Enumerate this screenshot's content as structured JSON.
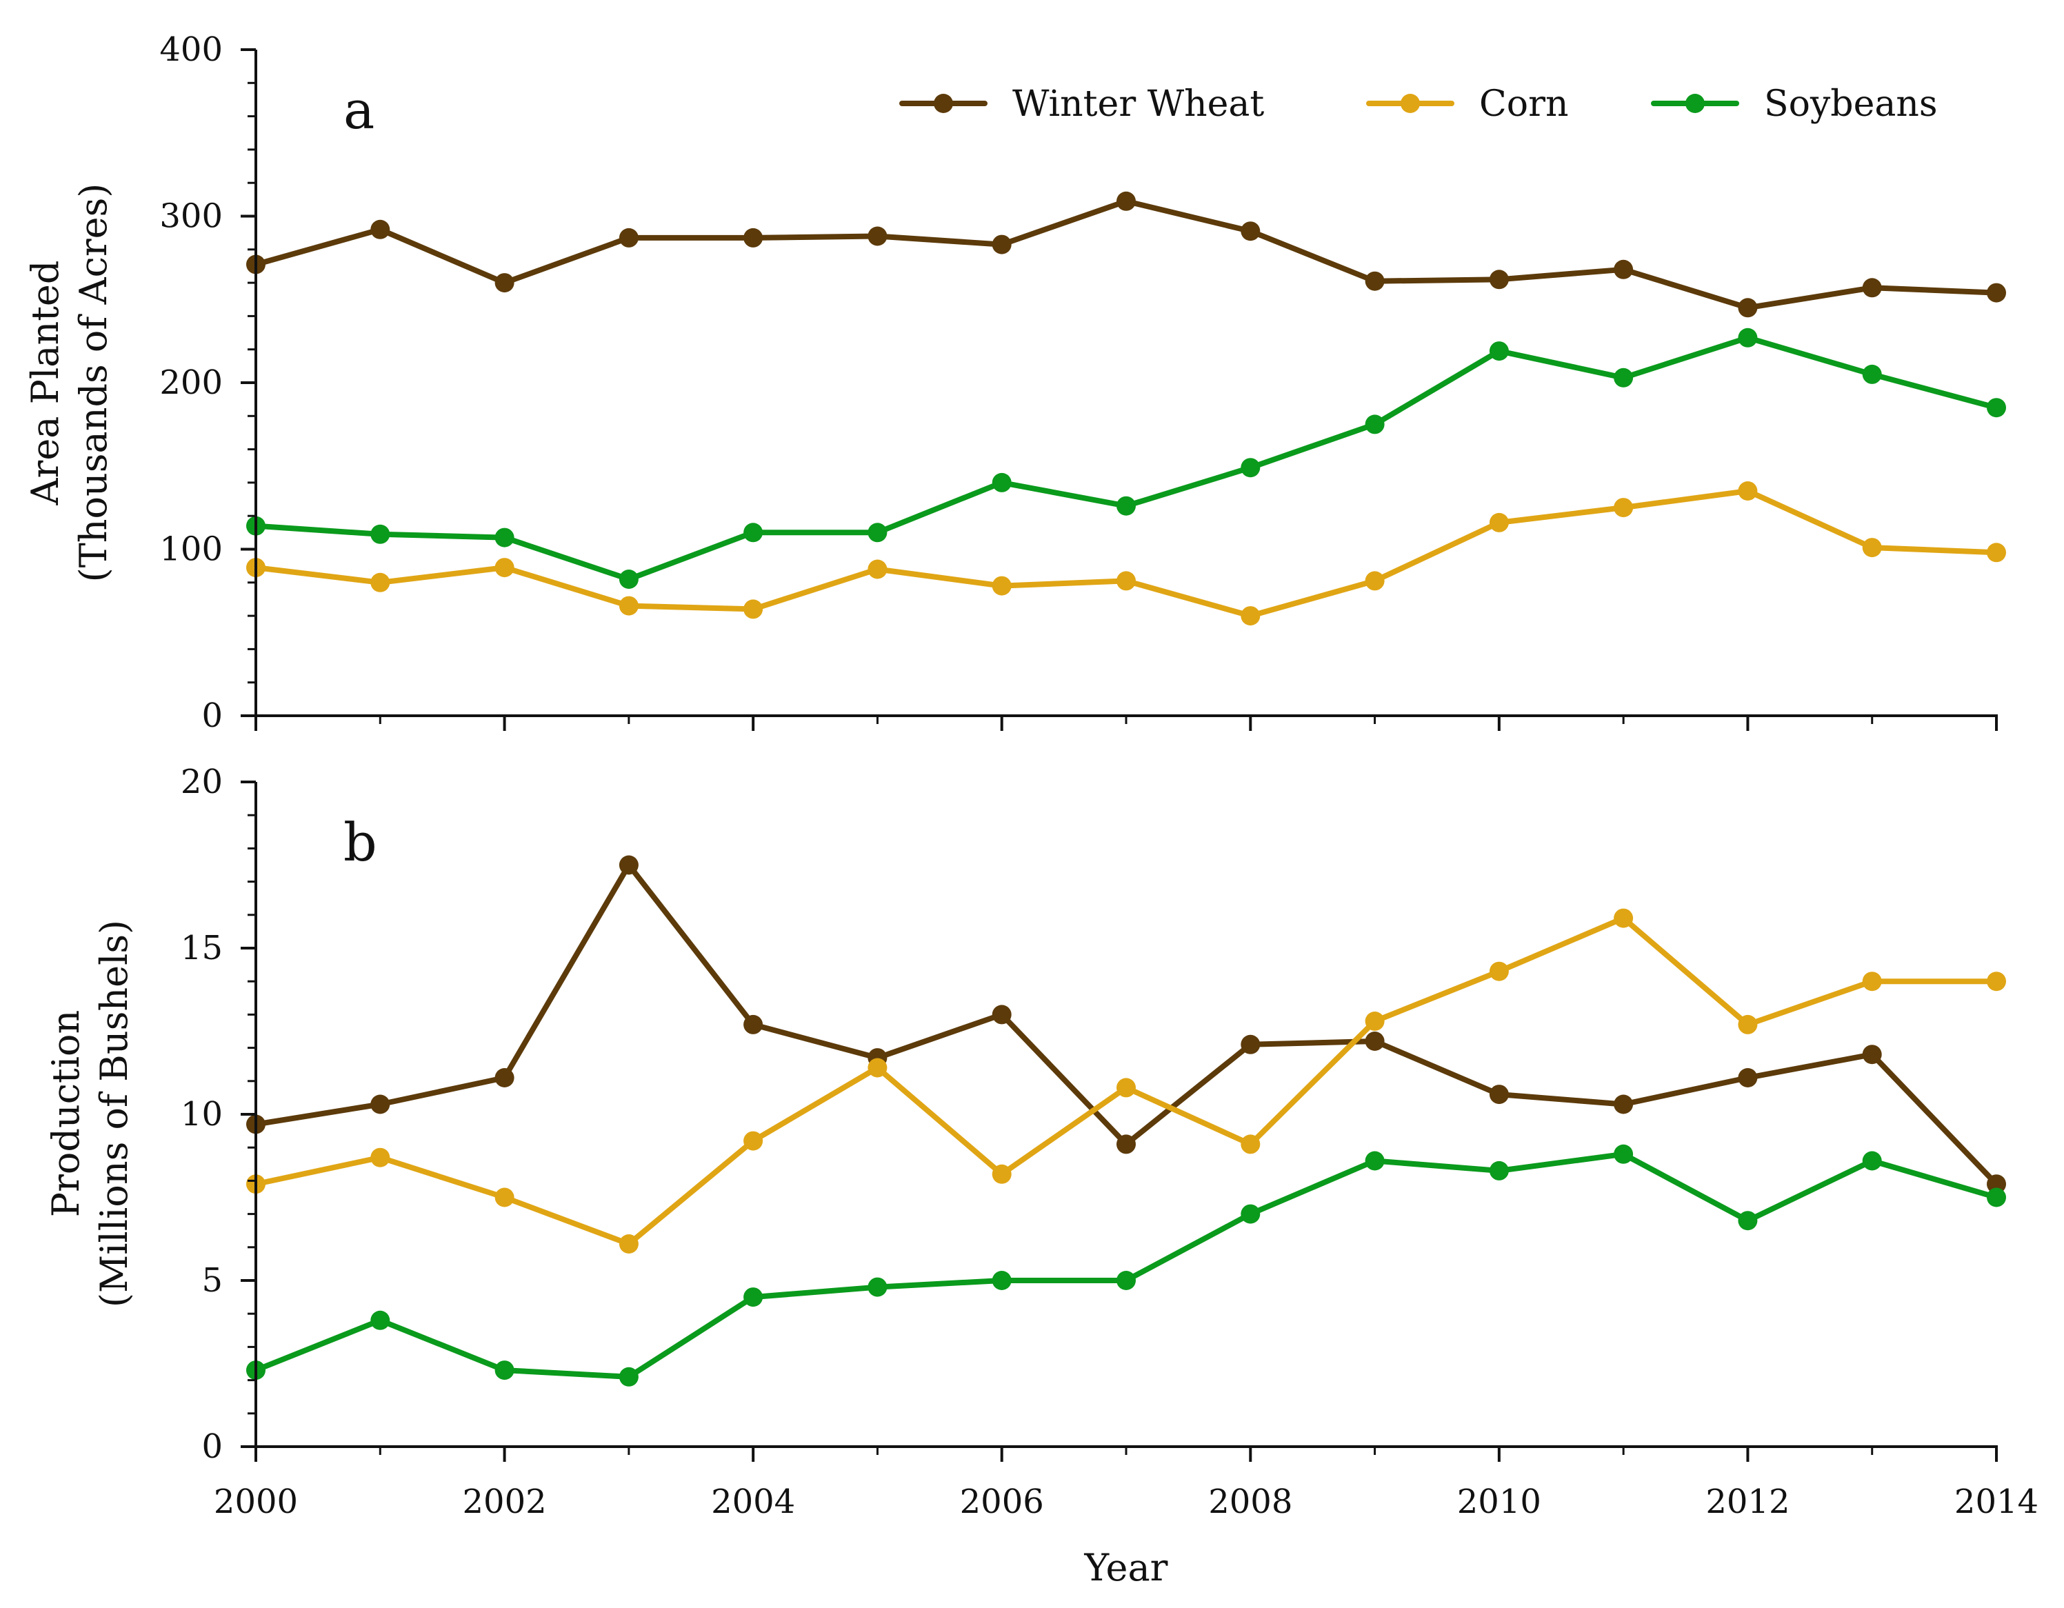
{
  "chart_data": [
    {
      "type": "line",
      "panel_label": "a",
      "ylabel": [
        "Area Planted",
        "(Thousands of Acres)"
      ],
      "xlabel": "",
      "ylim": [
        0,
        400
      ],
      "xlim": [
        2000,
        2014
      ],
      "yticks": [
        0,
        100,
        200,
        300,
        400
      ],
      "ytick_labels": [
        "0",
        "100",
        "200",
        "300",
        "400"
      ],
      "legend_position": "top-right",
      "x": [
        2000,
        2001,
        2002,
        2003,
        2004,
        2005,
        2006,
        2007,
        2008,
        2009,
        2010,
        2011,
        2012,
        2013,
        2014
      ],
      "series": [
        {
          "name": "Winter Wheat",
          "color": "#5c3a0a",
          "values": [
            271,
            292,
            260,
            287,
            287,
            288,
            283,
            309,
            291,
            261,
            262,
            268,
            245,
            257,
            254
          ]
        },
        {
          "name": "Corn",
          "color": "#e0a514",
          "values": [
            89,
            80,
            89,
            66,
            64,
            88,
            78,
            81,
            60,
            81,
            116,
            125,
            135,
            101,
            98
          ]
        },
        {
          "name": "Soybeans",
          "color": "#0a9a1c",
          "values": [
            114,
            109,
            107,
            82,
            110,
            110,
            140,
            126,
            149,
            175,
            219,
            203,
            227,
            205,
            185
          ]
        }
      ]
    },
    {
      "type": "line",
      "panel_label": "b",
      "ylabel": [
        "Production",
        "(Millions of Bushels)"
      ],
      "xlabel": "Year",
      "ylim": [
        0,
        20
      ],
      "xlim": [
        2000,
        2014
      ],
      "yticks": [
        0,
        5,
        10,
        15,
        20
      ],
      "ytick_labels": [
        "0",
        "5",
        "10",
        "15",
        "20"
      ],
      "xticks": [
        2000,
        2002,
        2004,
        2006,
        2008,
        2010,
        2012,
        2014
      ],
      "xtick_labels": [
        "2000",
        "2002",
        "2004",
        "2006",
        "2008",
        "2010",
        "2012",
        "2014"
      ],
      "x": [
        2000,
        2001,
        2002,
        2003,
        2004,
        2005,
        2006,
        2007,
        2008,
        2009,
        2010,
        2011,
        2012,
        2013,
        2014
      ],
      "series": [
        {
          "name": "Winter Wheat",
          "color": "#5c3a0a",
          "values": [
            9.7,
            10.3,
            11.1,
            17.5,
            12.7,
            11.7,
            13.0,
            9.1,
            12.1,
            12.2,
            10.6,
            10.3,
            11.1,
            11.8,
            7.9
          ]
        },
        {
          "name": "Corn",
          "color": "#e0a514",
          "values": [
            7.9,
            8.7,
            7.5,
            6.1,
            9.2,
            11.4,
            8.2,
            10.8,
            9.1,
            12.8,
            14.3,
            15.9,
            12.7,
            14.0,
            14.0
          ]
        },
        {
          "name": "Soybeans",
          "color": "#0a9a1c",
          "values": [
            2.3,
            3.8,
            2.3,
            2.1,
            4.5,
            4.8,
            5.0,
            5.0,
            7.0,
            8.6,
            8.3,
            8.8,
            6.8,
            8.6,
            7.5
          ]
        }
      ]
    }
  ]
}
